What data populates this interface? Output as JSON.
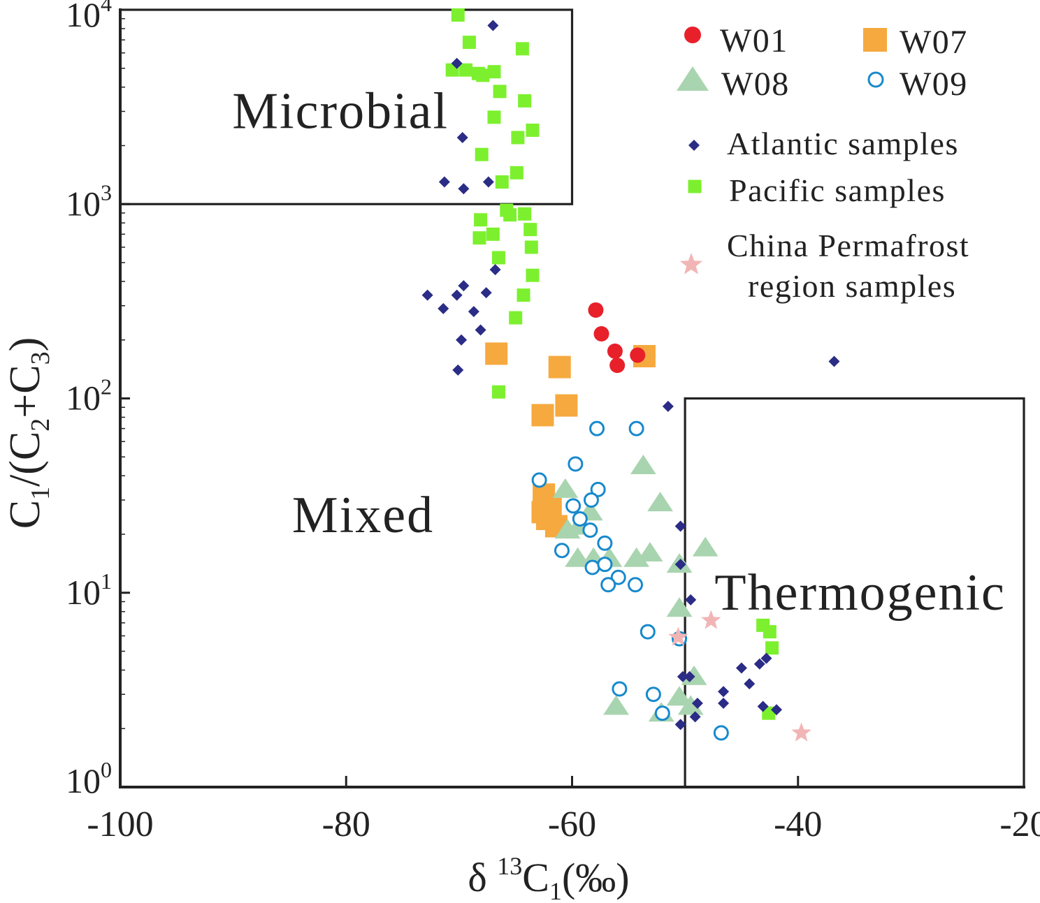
{
  "chart_data": {
    "type": "scatter",
    "title": "",
    "xlabel": "δ 13C1(‰)",
    "ylabel": "C1/(C2+C3)",
    "xlim": [
      -100,
      -20
    ],
    "ylim": [
      1,
      10000
    ],
    "yscale": "log",
    "xticks": [
      -100,
      -80,
      -60,
      -40,
      -20
    ],
    "xtick_labels": [
      "-100",
      "-80",
      "-60",
      "-40",
      "-20"
    ],
    "yticks": [
      1,
      10,
      100,
      1000,
      10000
    ],
    "ytick_labels": [
      {
        "base": "10",
        "exp": "0"
      },
      {
        "base": "10",
        "exp": "1"
      },
      {
        "base": "10",
        "exp": "2"
      },
      {
        "base": "10",
        "exp": "3"
      },
      {
        "base": "10",
        "exp": "4"
      }
    ],
    "xlabel_parts": {
      "delta": "δ",
      "sup": "13",
      "main": "C",
      "sub": "1",
      "tail": "(‰)"
    },
    "ylabel_parts": {
      "a": "C",
      "a_sub": "1",
      "b": "/(C",
      "b_sub": "2",
      "c": "+C",
      "c_sub": "3",
      "d": ")"
    },
    "regions": [
      {
        "name": "Microbial",
        "label": "Microbial",
        "x": [
          -100,
          -60
        ],
        "y": [
          1000,
          10000
        ],
        "label_at": [
          -80.5,
          3000
        ]
      },
      {
        "name": "Mixed",
        "label": "Mixed",
        "label_at": [
          -78.5,
          25
        ]
      },
      {
        "name": "Thermogenic",
        "label": "Thermogenic",
        "x": [
          -50,
          -20
        ],
        "y": [
          1,
          100
        ],
        "label_at": [
          -34.5,
          10
        ]
      }
    ],
    "series": [
      {
        "name": "W01",
        "label": "W01",
        "marker": "circle",
        "color": "#e8202a",
        "points": [
          [
            -57.9,
            285
          ],
          [
            -57.4,
            215
          ],
          [
            -56.2,
            175
          ],
          [
            -56.0,
            148
          ],
          [
            -54.2,
            167
          ]
        ]
      },
      {
        "name": "W07",
        "label": "W07",
        "marker": "square",
        "color": "#f5a93e",
        "points": [
          [
            -66.7,
            170
          ],
          [
            -61.1,
            145
          ],
          [
            -60.5,
            92
          ],
          [
            -62.6,
            82
          ],
          [
            -53.6,
            165
          ],
          [
            -62.5,
            32
          ],
          [
            -61.9,
            27
          ],
          [
            -62.2,
            24
          ],
          [
            -61.4,
            22
          ],
          [
            -62.6,
            26
          ]
        ]
      },
      {
        "name": "W08",
        "label": "W08",
        "marker": "triangle",
        "color": "#a9d4b0",
        "points": [
          [
            -53.7,
            45
          ],
          [
            -52.2,
            29
          ],
          [
            -60.6,
            34
          ],
          [
            -58.4,
            26
          ],
          [
            -59.4,
            22
          ],
          [
            -60.4,
            21
          ],
          [
            -59.5,
            15
          ],
          [
            -58.1,
            15
          ],
          [
            -56.7,
            15
          ],
          [
            -54.3,
            15
          ],
          [
            -53.1,
            16
          ],
          [
            -50.5,
            14
          ],
          [
            -48.2,
            17
          ],
          [
            -50.5,
            8.3
          ],
          [
            -56.1,
            2.6
          ],
          [
            -52.1,
            2.4
          ],
          [
            -50.5,
            2.9
          ],
          [
            -49.5,
            2.6
          ],
          [
            -49.2,
            3.7
          ]
        ]
      },
      {
        "name": "W09",
        "label": "W09",
        "marker": "open-circle",
        "color": "#1789cc",
        "points": [
          [
            -57.8,
            70
          ],
          [
            -54.3,
            70
          ],
          [
            -59.7,
            46
          ],
          [
            -62.9,
            38
          ],
          [
            -57.7,
            34
          ],
          [
            -58.3,
            30
          ],
          [
            -59.9,
            28
          ],
          [
            -59.3,
            24
          ],
          [
            -58.4,
            21
          ],
          [
            -57.1,
            18
          ],
          [
            -60.9,
            16.5
          ],
          [
            -58.2,
            13.5
          ],
          [
            -57.1,
            14
          ],
          [
            -55.9,
            12
          ],
          [
            -56.8,
            11
          ],
          [
            -54.4,
            11
          ],
          [
            -53.3,
            6.3
          ],
          [
            -50.5,
            5.8
          ],
          [
            -55.8,
            3.2
          ],
          [
            -52.8,
            3.0
          ],
          [
            -52.0,
            2.4
          ],
          [
            -46.8,
            1.9
          ]
        ]
      },
      {
        "name": "Atlantic samples",
        "label": "Atlantic samples",
        "marker": "diamond",
        "color": "#2a2c86",
        "points": [
          [
            -67.0,
            8300
          ],
          [
            -70.2,
            5300
          ],
          [
            -69.7,
            2200
          ],
          [
            -71.3,
            1300
          ],
          [
            -69.6,
            1200
          ],
          [
            -67.4,
            1300
          ],
          [
            -66.8,
            460
          ],
          [
            -72.8,
            340
          ],
          [
            -71.4,
            290
          ],
          [
            -69.6,
            380
          ],
          [
            -70.2,
            340
          ],
          [
            -67.6,
            350
          ],
          [
            -68.7,
            280
          ],
          [
            -69.8,
            200
          ],
          [
            -68.1,
            225
          ],
          [
            -70.1,
            140
          ],
          [
            -36.8,
            155
          ],
          [
            -51.5,
            91
          ],
          [
            -50.4,
            22
          ],
          [
            -50.4,
            14
          ],
          [
            -49.5,
            9.2
          ],
          [
            -50.2,
            3.7
          ],
          [
            -49.6,
            3.7
          ],
          [
            -48.9,
            2.7
          ],
          [
            -46.6,
            3.1
          ],
          [
            -46.6,
            2.7
          ],
          [
            -45.0,
            4.1
          ],
          [
            -44.3,
            3.4
          ],
          [
            -43.4,
            4.3
          ],
          [
            -42.8,
            4.6
          ],
          [
            -43.1,
            2.6
          ],
          [
            -41.9,
            2.5
          ],
          [
            -49.1,
            2.3
          ],
          [
            -50.4,
            2.1
          ]
        ]
      },
      {
        "name": "Pacific samples",
        "label": "Pacific samples",
        "marker": "square",
        "color": "#7cf02e",
        "points": [
          [
            -70.1,
            9400
          ],
          [
            -69.1,
            6800
          ],
          [
            -64.4,
            6300
          ],
          [
            -70.6,
            4900
          ],
          [
            -69.4,
            4900
          ],
          [
            -68.3,
            4700
          ],
          [
            -67.9,
            4600
          ],
          [
            -66.9,
            4800
          ],
          [
            -66.4,
            3800
          ],
          [
            -64.2,
            3400
          ],
          [
            -66.9,
            2800
          ],
          [
            -63.5,
            2400
          ],
          [
            -64.8,
            2200
          ],
          [
            -68.0,
            1800
          ],
          [
            -64.9,
            1450
          ],
          [
            -66.2,
            1300
          ],
          [
            -65.8,
            930
          ],
          [
            -65.5,
            880
          ],
          [
            -64.2,
            890
          ],
          [
            -68.1,
            830
          ],
          [
            -63.7,
            740
          ],
          [
            -67.0,
            700
          ],
          [
            -68.2,
            670
          ],
          [
            -63.6,
            600
          ],
          [
            -66.5,
            530
          ],
          [
            -63.5,
            430
          ],
          [
            -64.3,
            340
          ],
          [
            -65.0,
            260
          ],
          [
            -66.5,
            108
          ],
          [
            -43.1,
            6.8
          ],
          [
            -42.5,
            6.3
          ],
          [
            -42.3,
            5.2
          ],
          [
            -42.6,
            2.4
          ]
        ]
      },
      {
        "name": "China Permafrost region samples",
        "label": "China Permafrost",
        "label2": "region samples",
        "marker": "star",
        "color": "#f2b5b5",
        "points": [
          [
            -47.7,
            7.2
          ],
          [
            -50.6,
            5.9
          ],
          [
            -39.7,
            1.9
          ]
        ]
      }
    ]
  }
}
